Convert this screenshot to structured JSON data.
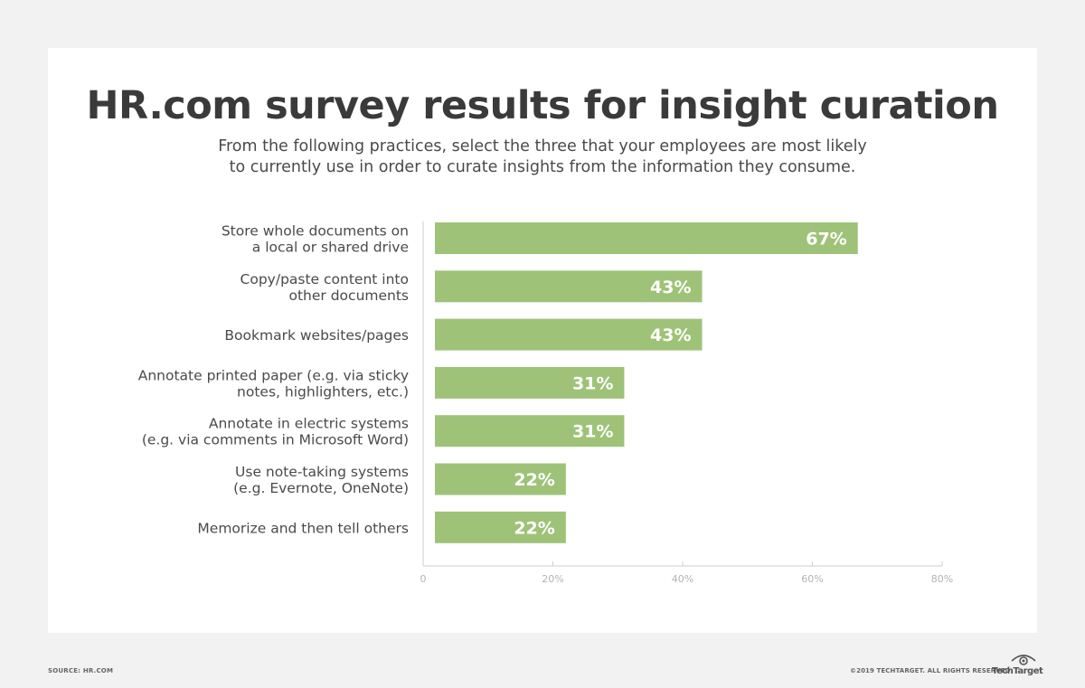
{
  "header": {
    "title": "HR.com survey results for insight curation",
    "subtitle_line1": "From the following practices, select the three that your employees are most likely",
    "subtitle_line2": "to currently use in order to curate insights from the information they consume."
  },
  "footer": {
    "source": "SOURCE: HR.COM",
    "copyright": "©2019 TECHTARGET. ALL RIGHTS RESERVED",
    "logo_text": "TechTarget",
    "logo_icon": "eye-icon"
  },
  "colors": {
    "bar": "#9ec378",
    "bar_label": "#ffffff",
    "category_text": "#4a4a4a",
    "axis": "#cccccc",
    "tick_text": "#b3b3b3"
  },
  "chart_data": {
    "type": "bar",
    "orientation": "horizontal",
    "categories": [
      [
        "Store whole documents on",
        "a local or shared drive"
      ],
      [
        "Copy/paste content into",
        "other documents"
      ],
      [
        "Bookmark websites/pages"
      ],
      [
        "Annotate printed paper (e.g. via sticky",
        "notes, highlighters, etc.)"
      ],
      [
        "Annotate in electric systems",
        "(e.g. via comments in Microsoft Word)"
      ],
      [
        "Use note-taking systems",
        "(e.g. Evernote, OneNote)"
      ],
      [
        "Memorize and then tell others"
      ]
    ],
    "values": [
      67,
      43,
      43,
      31,
      31,
      22,
      22
    ],
    "data_labels": [
      "67%",
      "43%",
      "43%",
      "31%",
      "31%",
      "22%",
      "22%"
    ],
    "xlim": [
      0,
      80
    ],
    "ticks": [
      0,
      20,
      40,
      60,
      80
    ],
    "tick_labels": [
      "0",
      "20%",
      "40%",
      "60%",
      "80%"
    ],
    "grid": false
  }
}
